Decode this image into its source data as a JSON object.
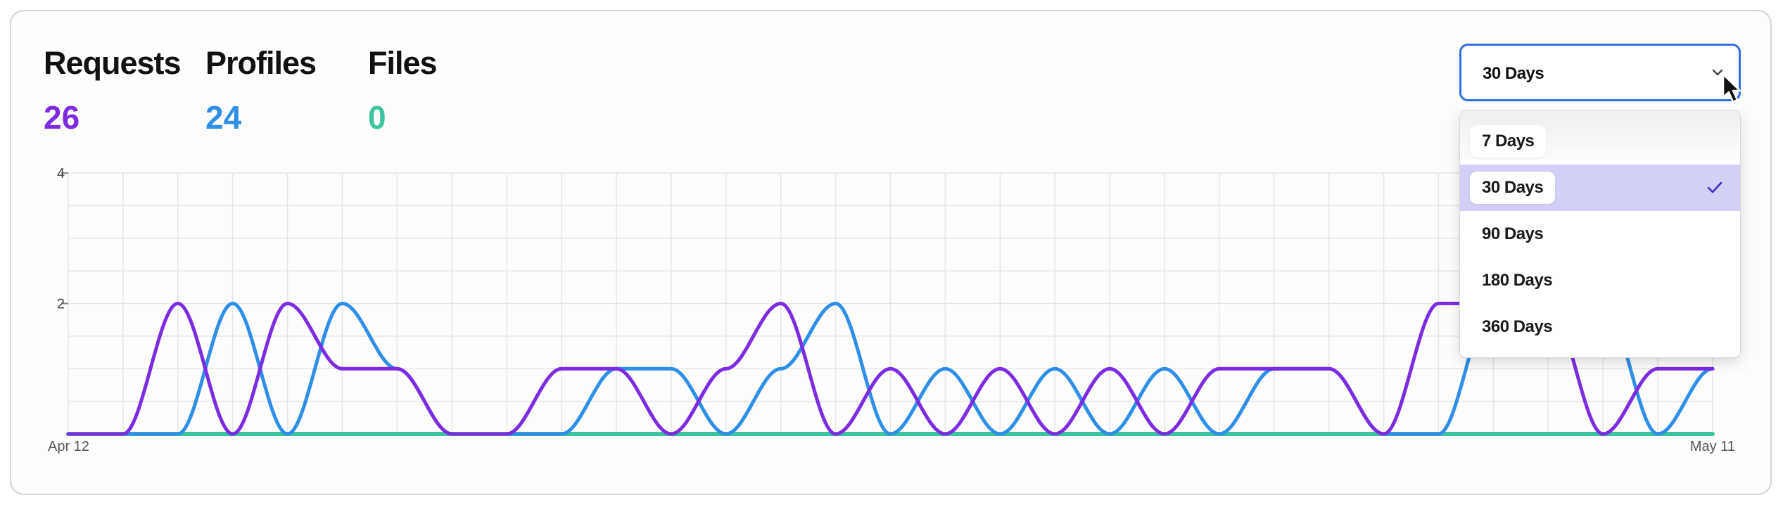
{
  "metrics": [
    {
      "label": "Requests",
      "value": "26",
      "color": "#7c2ce0"
    },
    {
      "label": "Profiles",
      "value": "24",
      "color": "#2f8fe6"
    },
    {
      "label": "Files",
      "value": "0",
      "color": "#3cc4a0"
    }
  ],
  "range_select": {
    "selected": "30 Days",
    "options": [
      "7 Days",
      "30 Days",
      "90 Days",
      "180 Days",
      "360 Days"
    ],
    "selected_index": 1
  },
  "chart_data": {
    "type": "line",
    "x_start_label": "Apr 12",
    "x_end_label": "May 11",
    "yticks": [
      "4",
      "2"
    ],
    "ylim": [
      0,
      4
    ],
    "grid": true,
    "series": [
      {
        "name": "Requests",
        "color": "#7c2ce0",
        "values": [
          0,
          0,
          2,
          0,
          2,
          1,
          1,
          0,
          0,
          1,
          1,
          0,
          1,
          2,
          0,
          1,
          0,
          1,
          0,
          1,
          0,
          1,
          1,
          1,
          0,
          2,
          2,
          2,
          0,
          1,
          1
        ]
      },
      {
        "name": "Profiles",
        "color": "#2f8fe6",
        "values": [
          0,
          0,
          0,
          2,
          0,
          2,
          1,
          0,
          0,
          0,
          1,
          1,
          0,
          1,
          2,
          0,
          1,
          0,
          1,
          0,
          1,
          0,
          1,
          1,
          0,
          0,
          2,
          2,
          2,
          0,
          1
        ]
      },
      {
        "name": "Files",
        "color": "#3cc4a0",
        "values": [
          0,
          0,
          0,
          0,
          0,
          0,
          0,
          0,
          0,
          0,
          0,
          0,
          0,
          0,
          0,
          0,
          0,
          0,
          0,
          0,
          0,
          0,
          0,
          0,
          0,
          0,
          0,
          0,
          0,
          0,
          0
        ]
      }
    ]
  }
}
